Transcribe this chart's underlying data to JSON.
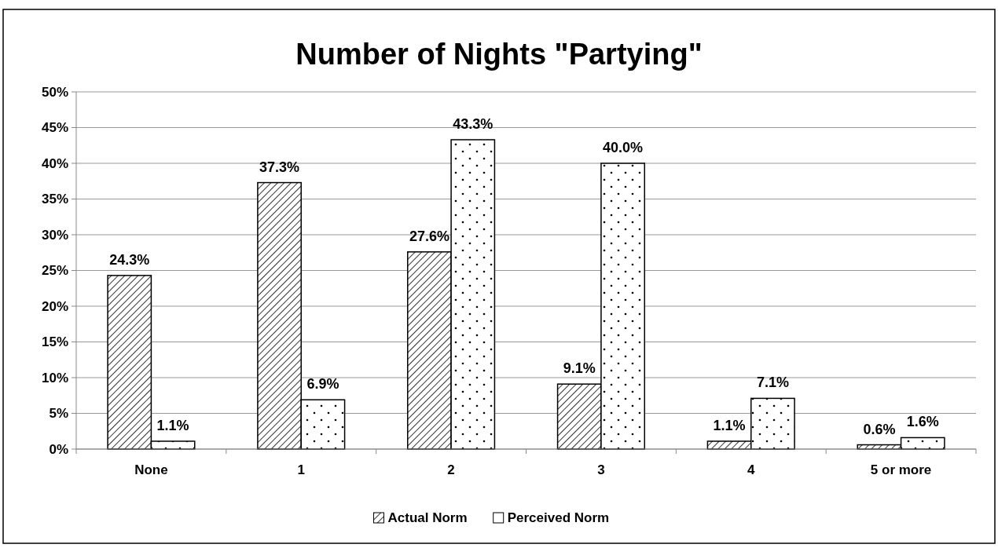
{
  "chart_data": {
    "type": "bar",
    "title": "Number of Nights \"Partying\"",
    "categories": [
      "None",
      "1",
      "2",
      "3",
      "4",
      "5 or more"
    ],
    "series": [
      {
        "name": "Actual Norm",
        "color": "#000000",
        "values": [
          24.3,
          37.3,
          27.6,
          9.1,
          1.1,
          0.6
        ]
      },
      {
        "name": "Perceived Norm",
        "color": "#000000",
        "values": [
          1.1,
          6.9,
          43.3,
          40.0,
          7.1,
          1.6
        ]
      }
    ],
    "value_labels": [
      [
        "24.3%",
        "37.3%",
        "27.6%",
        "9.1%",
        "1.1%",
        "0.6%"
      ],
      [
        "1.1%",
        "6.9%",
        "43.3%",
        "40.0%",
        "7.1%",
        "1.6%"
      ]
    ],
    "ylim": [
      0,
      50
    ],
    "yticks": [
      {
        "value": 0,
        "label": "0%"
      },
      {
        "value": 5,
        "label": "5%"
      },
      {
        "value": 10,
        "label": "10%"
      },
      {
        "value": 15,
        "label": "15%"
      },
      {
        "value": 20,
        "label": "20%"
      },
      {
        "value": 25,
        "label": "25%"
      },
      {
        "value": 30,
        "label": "30%"
      },
      {
        "value": 35,
        "label": "35%"
      },
      {
        "value": 40,
        "label": "40%"
      },
      {
        "value": 45,
        "label": "45%"
      },
      {
        "value": 50,
        "label": "50%"
      }
    ],
    "grid": "y",
    "legend": "bottom"
  }
}
